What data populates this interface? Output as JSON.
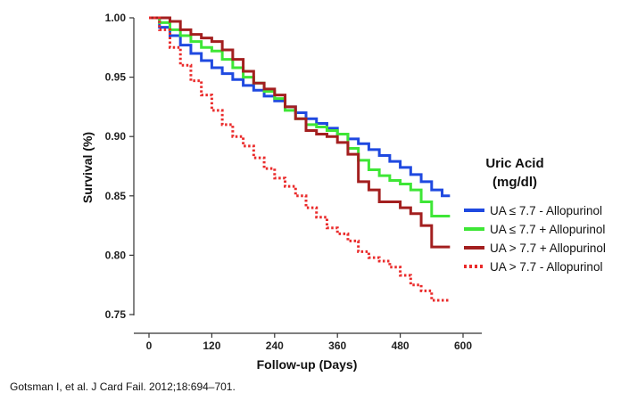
{
  "chart_data": {
    "type": "line",
    "title": "",
    "xlabel": "Follow-up (Days)",
    "ylabel": "Survival (%)",
    "xlim": [
      0,
      600
    ],
    "ylim": [
      0.75,
      1.0
    ],
    "x_ticks": [
      0,
      120,
      240,
      360,
      480,
      600
    ],
    "x_tick_labels": [
      "0",
      "120",
      "240",
      "360",
      "480",
      "600"
    ],
    "y_ticks": [
      0.75,
      0.8,
      0.85,
      0.9,
      0.95,
      1.0
    ],
    "y_tick_labels": [
      "0.75",
      "0.80",
      "0.85",
      "0.90",
      "0.95",
      "1.00"
    ],
    "legend_title": [
      "Uric Acid",
      "(mg/dl)"
    ],
    "series": [
      {
        "name": "UA ≤ 7.7 - Allopurinol",
        "color": "#1f49e0",
        "style": "solid",
        "x": [
          0,
          20,
          40,
          60,
          80,
          100,
          120,
          140,
          160,
          180,
          200,
          220,
          240,
          260,
          280,
          300,
          320,
          340,
          360,
          380,
          400,
          420,
          440,
          460,
          480,
          500,
          520,
          540,
          560,
          575
        ],
        "y": [
          1.0,
          0.992,
          0.985,
          0.977,
          0.97,
          0.964,
          0.958,
          0.953,
          0.948,
          0.943,
          0.939,
          0.934,
          0.93,
          0.925,
          0.92,
          0.915,
          0.911,
          0.907,
          0.902,
          0.898,
          0.894,
          0.889,
          0.884,
          0.879,
          0.874,
          0.868,
          0.862,
          0.855,
          0.85,
          0.85
        ]
      },
      {
        "name": "UA ≤ 7.7 + Allopurinol",
        "color": "#3ee636",
        "style": "solid",
        "x": [
          0,
          20,
          40,
          60,
          80,
          100,
          120,
          140,
          160,
          180,
          200,
          220,
          240,
          260,
          280,
          300,
          320,
          340,
          360,
          380,
          400,
          420,
          440,
          460,
          480,
          500,
          520,
          540,
          560,
          575
        ],
        "y": [
          1.0,
          0.996,
          0.99,
          0.985,
          0.98,
          0.975,
          0.972,
          0.965,
          0.958,
          0.95,
          0.945,
          0.938,
          0.932,
          0.922,
          0.915,
          0.91,
          0.908,
          0.905,
          0.902,
          0.89,
          0.88,
          0.872,
          0.867,
          0.863,
          0.86,
          0.855,
          0.845,
          0.833,
          0.833,
          0.833
        ]
      },
      {
        "name": "UA > 7.7 + Allopurinol",
        "color": "#a31f1f",
        "style": "solid",
        "x": [
          0,
          20,
          40,
          60,
          80,
          100,
          120,
          140,
          160,
          180,
          200,
          220,
          240,
          260,
          280,
          300,
          320,
          340,
          360,
          380,
          400,
          420,
          440,
          460,
          480,
          500,
          520,
          540,
          560,
          575
        ],
        "y": [
          1.0,
          1.0,
          0.997,
          0.99,
          0.986,
          0.983,
          0.98,
          0.973,
          0.965,
          0.955,
          0.945,
          0.94,
          0.935,
          0.925,
          0.915,
          0.905,
          0.902,
          0.9,
          0.895,
          0.885,
          0.862,
          0.855,
          0.845,
          0.845,
          0.84,
          0.835,
          0.825,
          0.807,
          0.807,
          0.807
        ]
      },
      {
        "name": "UA > 7.7 - Allopurinol",
        "color": "#ea2b2b",
        "style": "dotted",
        "x": [
          0,
          20,
          40,
          60,
          80,
          100,
          120,
          140,
          160,
          180,
          200,
          220,
          240,
          260,
          280,
          300,
          320,
          340,
          360,
          380,
          400,
          420,
          440,
          460,
          480,
          500,
          520,
          540,
          560,
          575
        ],
        "y": [
          1.0,
          0.99,
          0.975,
          0.96,
          0.947,
          0.935,
          0.922,
          0.91,
          0.9,
          0.892,
          0.882,
          0.873,
          0.865,
          0.858,
          0.85,
          0.84,
          0.832,
          0.823,
          0.818,
          0.812,
          0.803,
          0.798,
          0.795,
          0.79,
          0.783,
          0.775,
          0.77,
          0.762,
          0.762,
          0.762
        ]
      }
    ]
  },
  "legend": {
    "items": [
      {
        "label": "UA ≤ 7.7 - Allopurinol"
      },
      {
        "label": "UA ≤ 7.7 + Allopurinol"
      },
      {
        "label": "UA > 7.7 + Allopurinol"
      },
      {
        "label": "UA > 7.7 - Allopurinol"
      }
    ]
  },
  "citation": "Gotsman I, et al. J Card Fail. 2012;18:694–701."
}
